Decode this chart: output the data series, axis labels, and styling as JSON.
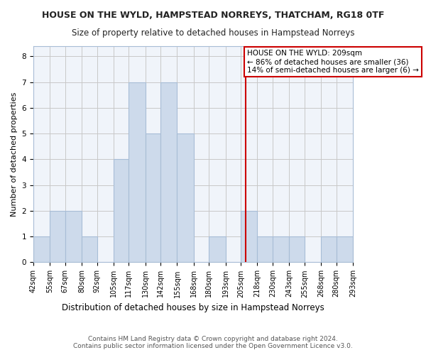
{
  "title1": "HOUSE ON THE WYLD, HAMPSTEAD NORREYS, THATCHAM, RG18 0TF",
  "title2": "Size of property relative to detached houses in Hampstead Norreys",
  "xlabel": "Distribution of detached houses by size in Hampstead Norreys",
  "ylabel": "Number of detached properties",
  "bar_edges": [
    42,
    55,
    67,
    80,
    92,
    105,
    117,
    130,
    142,
    155,
    168,
    180,
    193,
    205,
    218,
    230,
    243,
    255,
    268,
    280,
    293
  ],
  "bar_heights": [
    1,
    2,
    2,
    1,
    0,
    4,
    7,
    5,
    7,
    5,
    0,
    1,
    0,
    2,
    1,
    1,
    1,
    0,
    1,
    1
  ],
  "bar_color": "#cddaeb",
  "bar_edgecolor": "#a8bdd6",
  "grid_color": "#c8c8c8",
  "bg_color": "#f0f4fa",
  "vline_x": 209,
  "vline_color": "#cc0000",
  "annotation_title": "HOUSE ON THE WYLD: 209sqm",
  "annotation_line1": "← 86% of detached houses are smaller (36)",
  "annotation_line2": "14% of semi-detached houses are larger (6) →",
  "annotation_box_color": "#ffffff",
  "annotation_box_edgecolor": "#cc0000",
  "ylim": [
    0,
    8.4
  ],
  "yticks": [
    0,
    1,
    2,
    3,
    4,
    5,
    6,
    7,
    8
  ],
  "footer1": "Contains HM Land Registry data © Crown copyright and database right 2024.",
  "footer2": "Contains public sector information licensed under the Open Government Licence v3.0.",
  "tick_labels": [
    "42sqm",
    "55sqm",
    "67sqm",
    "80sqm",
    "92sqm",
    "105sqm",
    "117sqm",
    "130sqm",
    "142sqm",
    "155sqm",
    "168sqm",
    "180sqm",
    "193sqm",
    "205sqm",
    "218sqm",
    "230sqm",
    "243sqm",
    "255sqm",
    "268sqm",
    "280sqm",
    "293sqm"
  ],
  "title1_fontsize": 9.0,
  "title2_fontsize": 8.5,
  "xlabel_fontsize": 8.5,
  "ylabel_fontsize": 8.0,
  "tick_fontsize": 7.0,
  "footer_fontsize": 6.5
}
